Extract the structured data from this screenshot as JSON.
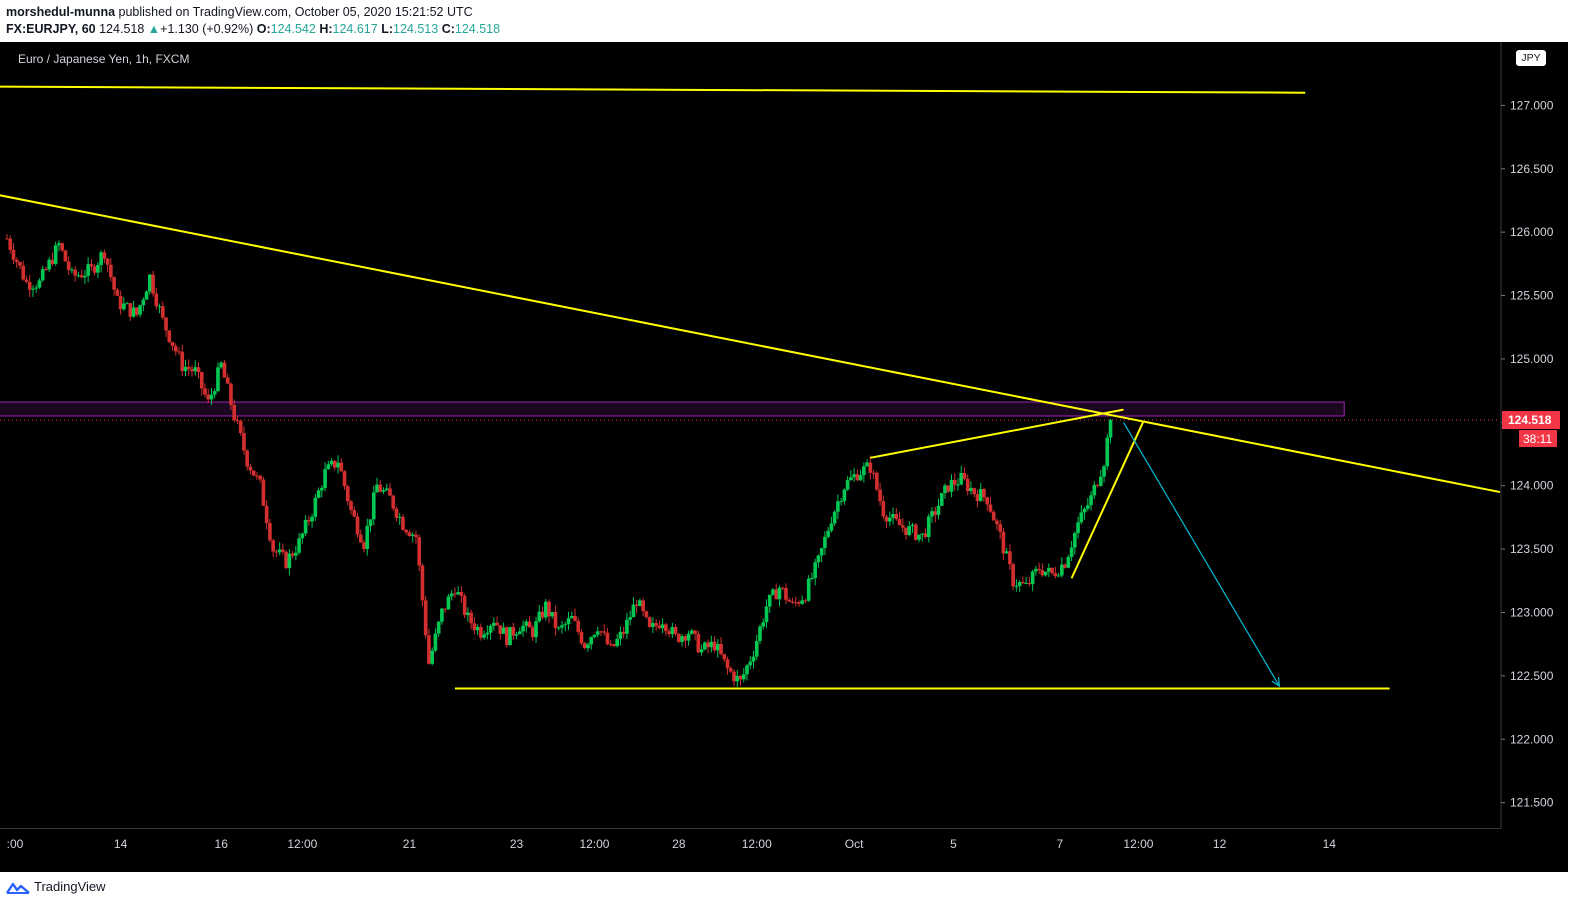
{
  "header": {
    "author": "morshedul-munna",
    "published_text": " published on TradingView.com, October 05, 2020 15:21:52 UTC",
    "symbol": "FX:EURJPY, 60",
    "last": "124.518",
    "change": "+1.130 (+0.92%)",
    "o_label": "O:",
    "o_value": "124.542",
    "h_label": "H:",
    "h_value": "124.617",
    "l_label": "L:",
    "l_value": "124.513",
    "c_label": "C:",
    "c_value": "124.518"
  },
  "legend_title": "Euro / Japanese Yen, 1h, FXCM",
  "currency": "JPY",
  "footer": {
    "brand": "TradingView",
    "icon": "tradingview-logo-icon"
  },
  "colors": {
    "up": "#26a69a",
    "down": "#ef5350",
    "candle_up": "#00c853",
    "candle_down": "#d32f2f",
    "trendline": "#ffff00",
    "zone": "#9c27b0",
    "projection": "#00bcd4",
    "price_label": "#f23645"
  },
  "chart_data": {
    "type": "candlestick",
    "symbol": "EURJPY",
    "timeframe": "1h",
    "x_ticks": [
      ":00",
      "14",
      "16",
      "12:00",
      "21",
      "23",
      "12:00",
      "28",
      "12:00",
      "Oct",
      "5",
      "7",
      "12:00",
      "12",
      "14"
    ],
    "y_ticks": [
      "127.000",
      "126.500",
      "126.000",
      "125.500",
      "125.000",
      "124.500",
      "124.000",
      "123.500",
      "123.000",
      "122.500",
      "122.000",
      "121.500"
    ],
    "ylim": [
      121.3,
      127.5
    ],
    "last_price": 124.518,
    "last_price_label": "124.518",
    "countdown": "38:11",
    "price_path": [
      [
        0,
        125.95
      ],
      [
        3,
        125.6
      ],
      [
        5,
        125.6
      ],
      [
        8,
        125.9
      ],
      [
        10,
        125.65
      ],
      [
        13,
        125.7
      ],
      [
        15,
        125.85
      ],
      [
        17,
        125.45
      ],
      [
        20,
        125.35
      ],
      [
        22,
        125.65
      ],
      [
        24,
        125.3
      ],
      [
        27,
        124.95
      ],
      [
        29,
        124.9
      ],
      [
        31,
        124.65
      ],
      [
        33,
        124.95
      ],
      [
        35,
        124.55
      ],
      [
        37,
        124.2
      ],
      [
        39,
        124.0
      ],
      [
        41,
        123.5
      ],
      [
        43,
        123.4
      ],
      [
        45,
        123.55
      ],
      [
        47,
        123.8
      ],
      [
        49,
        124.1
      ],
      [
        51,
        124.2
      ],
      [
        53,
        123.8
      ],
      [
        55,
        123.55
      ],
      [
        57,
        124.0
      ],
      [
        59,
        123.9
      ],
      [
        61,
        123.7
      ],
      [
        63,
        123.6
      ],
      [
        65,
        122.6
      ],
      [
        67,
        123.0
      ],
      [
        69,
        123.2
      ],
      [
        71,
        122.95
      ],
      [
        73,
        122.85
      ],
      [
        75,
        122.95
      ],
      [
        77,
        122.8
      ],
      [
        79,
        122.9
      ],
      [
        81,
        122.85
      ],
      [
        83,
        123.05
      ],
      [
        85,
        122.85
      ],
      [
        87,
        122.95
      ],
      [
        89,
        122.75
      ],
      [
        91,
        122.9
      ],
      [
        93,
        122.7
      ],
      [
        95,
        122.85
      ],
      [
        97,
        123.1
      ],
      [
        99,
        122.85
      ],
      [
        101,
        122.95
      ],
      [
        103,
        122.8
      ],
      [
        105,
        122.85
      ],
      [
        107,
        122.7
      ],
      [
        109,
        122.75
      ],
      [
        111,
        122.55
      ],
      [
        113,
        122.45
      ],
      [
        115,
        122.7
      ],
      [
        117,
        123.05
      ],
      [
        119,
        123.2
      ],
      [
        121,
        123.05
      ],
      [
        123,
        123.15
      ],
      [
        125,
        123.4
      ],
      [
        127,
        123.75
      ],
      [
        129,
        124.0
      ],
      [
        131,
        124.1
      ],
      [
        133,
        124.15
      ],
      [
        135,
        123.8
      ],
      [
        137,
        123.7
      ],
      [
        139,
        123.65
      ],
      [
        141,
        123.6
      ],
      [
        143,
        123.8
      ],
      [
        145,
        124.0
      ],
      [
        147,
        124.05
      ],
      [
        149,
        123.95
      ],
      [
        151,
        123.9
      ],
      [
        153,
        123.6
      ],
      [
        155,
        123.25
      ],
      [
        157,
        123.2
      ],
      [
        159,
        123.35
      ],
      [
        161,
        123.3
      ],
      [
        163,
        123.4
      ],
      [
        165,
        123.7
      ],
      [
        167,
        123.9
      ],
      [
        169,
        124.2
      ],
      [
        170,
        124.52
      ]
    ],
    "drawings": [
      {
        "type": "trendline",
        "from": [
          -10,
          127.15
        ],
        "to": [
          200,
          127.1
        ]
      },
      {
        "type": "trendline",
        "from": [
          -2,
          126.3
        ],
        "to": [
          230,
          123.95
        ]
      },
      {
        "type": "trendline",
        "from": [
          133,
          124.22
        ],
        "to": [
          172,
          124.6
        ]
      },
      {
        "type": "trendline",
        "from": [
          164,
          123.27
        ],
        "to": [
          175,
          124.5
        ]
      },
      {
        "type": "trendline",
        "from": [
          69,
          122.4
        ],
        "to": [
          213,
          122.4
        ]
      },
      {
        "type": "zone",
        "from": [
          -2,
          124.66
        ],
        "to": [
          206,
          124.55
        ]
      },
      {
        "type": "arrow",
        "from": [
          172,
          124.5
        ],
        "to": [
          196,
          122.42
        ]
      }
    ]
  }
}
